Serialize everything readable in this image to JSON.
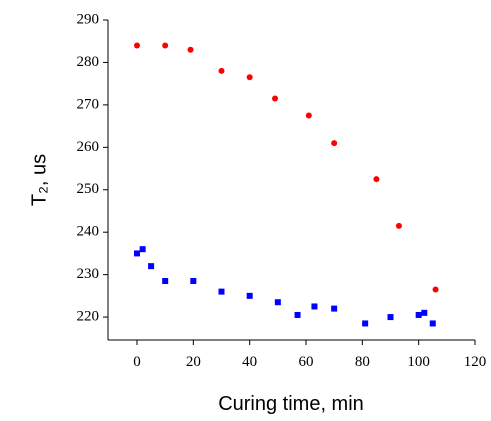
{
  "chart_data": {
    "type": "scatter",
    "x_label": "Curing time, min",
    "y_label": "T₂, us",
    "xlim": [
      -10.3,
      120
    ],
    "xticks": [
      0,
      20,
      40,
      60,
      80,
      100,
      120
    ],
    "ylim": [
      214.6,
      290
    ],
    "yticks": [
      220,
      230,
      240,
      250,
      260,
      270,
      280,
      290
    ],
    "grid": false,
    "series": [
      {
        "color": "#ff0000",
        "marker": "circle",
        "x": [
          0,
          10,
          19,
          30,
          40,
          49,
          61,
          70,
          85,
          93,
          106
        ],
        "values": [
          284,
          284,
          283,
          278,
          276.5,
          271.5,
          267.5,
          261,
          252.5,
          241.5,
          226.5
        ]
      },
      {
        "color": "#0000ff",
        "marker": "square",
        "x": [
          0,
          2,
          5,
          10,
          20,
          30,
          40,
          50,
          57,
          63,
          70,
          81,
          90,
          100,
          102,
          105
        ],
        "values": [
          235,
          236,
          232,
          228.5,
          228.5,
          226,
          225,
          223.5,
          220.5,
          222.5,
          222,
          218.5,
          220,
          220.5,
          221,
          218.5
        ]
      }
    ]
  }
}
